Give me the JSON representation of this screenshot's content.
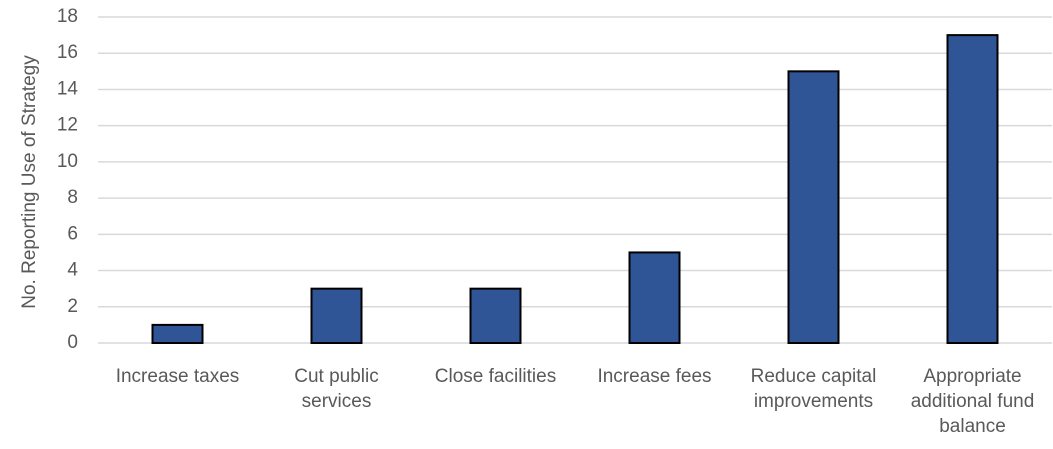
{
  "chart_data": {
    "type": "bar",
    "y_label": "No. Reporting Use of Strategy",
    "categories": [
      "Increase taxes",
      "Cut public services",
      "Close facilities",
      "Increase fees",
      "Reduce capital improvements",
      "Appropriate additional fund balance"
    ],
    "values": [
      1,
      3,
      3,
      5,
      15,
      17
    ],
    "color": "#2f5597",
    "ylim": [
      0,
      18
    ],
    "yticks": [
      0,
      2,
      4,
      6,
      8,
      10,
      12,
      14,
      16,
      18
    ],
    "grid": true
  }
}
